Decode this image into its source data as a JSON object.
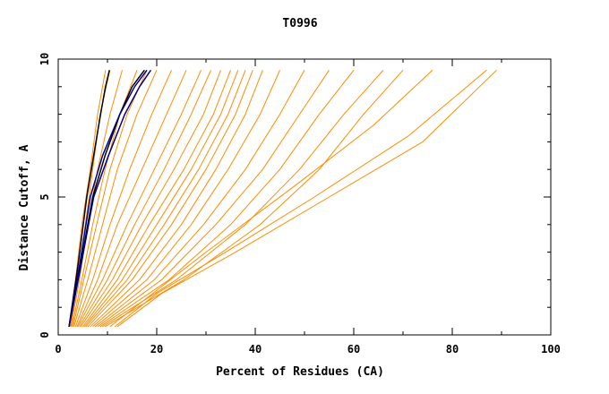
{
  "chart_data": {
    "type": "line",
    "title": "T0996",
    "xlabel": "Percent of Residues (CA)",
    "ylabel": "Distance Cutoff, A",
    "xlim": [
      0,
      100
    ],
    "ylim": [
      0,
      10
    ],
    "x_ticks": [
      "0",
      "20",
      "40",
      "60",
      "80",
      "100"
    ],
    "y_ticks": [
      "0",
      "5",
      "10"
    ],
    "grid": false,
    "legend": "none",
    "colors": {
      "orange": "#ff8c00",
      "dark": "#000000",
      "blue": "#00008b",
      "frame": "#000000"
    },
    "series": [
      {
        "color": "#ff8c00",
        "x": [
          2.3,
          3.5,
          4.8,
          6.5,
          8.0,
          9.6
        ],
        "y": [
          0.3,
          2.0,
          4.0,
          6.0,
          8.0,
          9.6
        ]
      },
      {
        "color": "#ff8c00",
        "x": [
          2.5,
          4.0,
          5.5,
          7.0,
          8.5,
          10.5
        ],
        "y": [
          0.3,
          2.0,
          4.0,
          6.0,
          8.0,
          9.6
        ]
      },
      {
        "color": "#ff8c00",
        "x": [
          2.6,
          4.3,
          6.0,
          8.0,
          10.5,
          13.0
        ],
        "y": [
          0.3,
          2.0,
          4.0,
          6.0,
          8.0,
          9.6
        ]
      },
      {
        "color": "#ff8c00",
        "x": [
          2.8,
          4.8,
          7.0,
          9.5,
          12.5,
          16.0
        ],
        "y": [
          0.3,
          2.0,
          4.0,
          6.0,
          8.0,
          9.6
        ]
      },
      {
        "color": "#ff8c00",
        "x": [
          3.0,
          5.2,
          7.8,
          10.5,
          14.0,
          18.0
        ],
        "y": [
          0.3,
          2.0,
          4.0,
          6.0,
          8.0,
          9.6
        ]
      },
      {
        "color": "#ff8c00",
        "x": [
          3.2,
          6.0,
          9.0,
          12.0,
          16.0,
          20.0
        ],
        "y": [
          0.3,
          2.0,
          4.0,
          6.0,
          8.0,
          9.6
        ]
      },
      {
        "color": "#ff8c00",
        "x": [
          3.5,
          7.0,
          10.5,
          14.5,
          19.0,
          23.0
        ],
        "y": [
          0.3,
          2.0,
          4.0,
          6.0,
          8.0,
          9.6
        ]
      },
      {
        "color": "#ff8c00",
        "x": [
          3.8,
          8.0,
          12.0,
          17.0,
          22.0,
          26.0
        ],
        "y": [
          0.3,
          2.0,
          4.0,
          6.0,
          8.0,
          9.6
        ]
      },
      {
        "color": "#ff8c00",
        "x": [
          4.0,
          9.0,
          14.0,
          19.5,
          25.0,
          29.0
        ],
        "y": [
          0.3,
          2.0,
          4.0,
          6.0,
          8.0,
          9.6
        ]
      },
      {
        "color": "#ff8c00",
        "x": [
          4.3,
          10.0,
          15.5,
          21.5,
          27.0,
          31.0
        ],
        "y": [
          0.3,
          2.0,
          4.0,
          6.0,
          8.0,
          9.6
        ]
      },
      {
        "color": "#ff8c00",
        "x": [
          4.6,
          11.0,
          17.0,
          23.5,
          29.5,
          33.0
        ],
        "y": [
          0.3,
          2.0,
          4.0,
          6.0,
          8.0,
          9.6
        ]
      },
      {
        "color": "#ff8c00",
        "x": [
          5.0,
          12.0,
          18.5,
          25.5,
          31.5,
          35.0
        ],
        "y": [
          0.3,
          2.0,
          4.0,
          6.0,
          8.0,
          9.6
        ]
      },
      {
        "color": "#ff8c00",
        "x": [
          5.3,
          13.0,
          20.0,
          27.0,
          33.0,
          36.5
        ],
        "y": [
          0.3,
          2.0,
          4.0,
          6.0,
          8.0,
          9.6
        ]
      },
      {
        "color": "#ff8c00",
        "x": [
          5.6,
          14.0,
          21.5,
          28.5,
          34.5,
          38.0
        ],
        "y": [
          0.3,
          2.0,
          4.0,
          6.0,
          8.0,
          9.6
        ]
      },
      {
        "color": "#ff8c00",
        "x": [
          6.0,
          15.0,
          23.0,
          30.0,
          36.0,
          39.5
        ],
        "y": [
          0.3,
          2.0,
          4.0,
          6.0,
          8.0,
          9.6
        ]
      },
      {
        "color": "#ff8c00",
        "x": [
          6.5,
          16.5,
          25.0,
          32.0,
          38.0,
          41.5
        ],
        "y": [
          0.3,
          2.0,
          4.0,
          6.0,
          8.0,
          9.6
        ]
      },
      {
        "color": "#ff8c00",
        "x": [
          7.0,
          18.0,
          27.0,
          34.5,
          41.0,
          45.0
        ],
        "y": [
          0.3,
          2.0,
          4.0,
          6.0,
          8.0,
          9.6
        ]
      },
      {
        "color": "#ff8c00",
        "x": [
          7.5,
          19.5,
          29.5,
          38.0,
          45.0,
          50.0
        ],
        "y": [
          0.3,
          2.0,
          4.0,
          6.0,
          8.0,
          9.6
        ]
      },
      {
        "color": "#ff8c00",
        "x": [
          8.0,
          21.0,
          32.0,
          41.5,
          49.0,
          55.0
        ],
        "y": [
          0.3,
          2.0,
          4.0,
          6.0,
          8.0,
          9.6
        ]
      },
      {
        "color": "#ff8c00",
        "x": [
          8.5,
          22.5,
          35.0,
          45.0,
          53.0,
          60.0
        ],
        "y": [
          0.3,
          2.0,
          4.0,
          6.0,
          8.0,
          9.6
        ]
      },
      {
        "color": "#ff8c00",
        "x": [
          9.0,
          24.0,
          38.0,
          49.0,
          58.0,
          66.0
        ],
        "y": [
          0.3,
          2.0,
          4.0,
          6.0,
          8.0,
          9.6
        ]
      },
      {
        "color": "#ff8c00",
        "x": [
          9.5,
          25.5,
          41.0,
          53.0,
          62.0,
          70.0
        ],
        "y": [
          0.3,
          2.0,
          4.0,
          6.0,
          8.0,
          9.6
        ]
      },
      {
        "color": "#ff8c00",
        "x": [
          10.5,
          17.0,
          30.0,
          48.0,
          64.0,
          76.0
        ],
        "y": [
          0.3,
          1.2,
          3.0,
          5.4,
          7.6,
          9.6
        ]
      },
      {
        "color": "#ff8c00",
        "x": [
          11.5,
          20.0,
          34.0,
          52.0,
          71.0,
          87.0
        ],
        "y": [
          0.3,
          1.5,
          3.0,
          5.0,
          7.2,
          9.6
        ]
      },
      {
        "color": "#ff8c00",
        "x": [
          12.0,
          21.0,
          36.0,
          55.0,
          74.0,
          89.0
        ],
        "y": [
          0.3,
          1.5,
          3.0,
          5.0,
          7.0,
          9.6
        ]
      },
      {
        "color": "#000000",
        "x": [
          2.2,
          4.0,
          5.8,
          7.2,
          8.6,
          9.6,
          10.4
        ],
        "y": [
          0.3,
          2.5,
          5.0,
          6.5,
          8.0,
          9.0,
          9.6
        ]
      },
      {
        "color": "#000000",
        "x": [
          2.2,
          4.5,
          7.0,
          9.5,
          12.5,
          15.0,
          17.5
        ],
        "y": [
          0.3,
          2.5,
          5.0,
          6.5,
          8.0,
          9.0,
          9.6
        ]
      },
      {
        "color": "#00008b",
        "x": [
          2.2,
          4.3,
          6.5,
          9.0,
          12.5,
          15.5,
          18.0
        ],
        "y": [
          0.3,
          2.5,
          5.0,
          6.5,
          8.0,
          9.0,
          9.6
        ]
      },
      {
        "color": "#00008b",
        "x": [
          2.2,
          4.6,
          7.2,
          10.2,
          13.5,
          16.5,
          18.8
        ],
        "y": [
          0.3,
          2.5,
          5.0,
          6.5,
          8.0,
          9.0,
          9.6
        ]
      }
    ]
  }
}
